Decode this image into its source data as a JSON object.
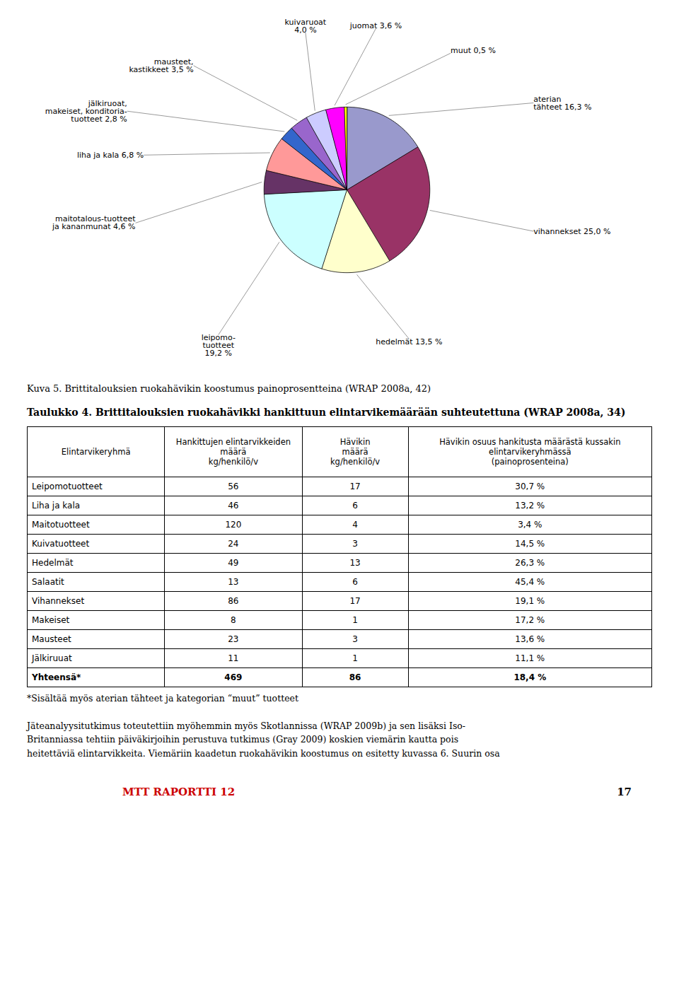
{
  "chart_data": {
    "type": "pie",
    "title": "Kuva 5. Brittitalouksien ruokahävikin koostumus painoprosentteina (WRAP 2008a, 42)",
    "categories": [
      "aterian\ntähteet 16,3 %",
      "vihannekset 25,0 %",
      "hedelmät 13,5 %",
      "leipomo-\ntuotteet\n19,2 %",
      "maitotalous-tuotteet\nja kananmunat 4,6 %",
      "liha ja kala 6,8 %",
      "jälkiruoat,\nmakeiset, konditoria-\ntuotteet 2,8 %",
      "mausteet,\nkastikkeet 3,5 %",
      "kuivaruoat\n4,0 %",
      "juomat 3,6 %",
      "muut 0,5 %"
    ],
    "values": [
      16.3,
      25.0,
      13.5,
      19.2,
      4.6,
      6.8,
      2.8,
      3.5,
      4.0,
      3.6,
      0.5
    ],
    "colors": [
      "#9999CC",
      "#993366",
      "#FFFFCC",
      "#CCFFFF",
      "#663366",
      "#FF9999",
      "#3366CC",
      "#9966CC",
      "#CCCCFF",
      "#FF00FF",
      "#FFFF00"
    ]
  },
  "table": {
    "title": "Taulukko 4. Brittitalouksien ruokahävikki hankittuun elintarvikemäärään suhteutettuna (WRAP 2008a, 34)",
    "header": [
      "Elintarvikeryhmä",
      "Hankittujen elintarvikkeiden määrä\nkg/henkilö/v",
      "Hävikin\nmäärä\nkg/henkilö/v",
      "Hävikin osuus hankitusta määrästä kussakin\nelintarvikeryhmässä\n(painoprosenteina)"
    ],
    "rows": [
      [
        "Leipomotuotteet",
        "56",
        "17",
        "30,7 %"
      ],
      [
        "Liha ja kala",
        "46",
        "6",
        "13,2 %"
      ],
      [
        "Maitotuotteet",
        "120",
        "4",
        "3,4 %"
      ],
      [
        "Kuivatuotteet",
        "24",
        "3",
        "14,5 %"
      ],
      [
        "Hedelmät",
        "49",
        "13",
        "26,3 %"
      ],
      [
        "Salaatit",
        "13",
        "6",
        "45,4 %"
      ],
      [
        "Vihannekset",
        "86",
        "17",
        "19,1 %"
      ],
      [
        "Makeiset",
        "8",
        "1",
        "17,2 %"
      ],
      [
        "Mausteet",
        "23",
        "3",
        "13,6 %"
      ],
      [
        "Jälkiruuat",
        "11",
        "1",
        "11,1 %"
      ],
      [
        "Yhteensä*",
        "469",
        "86",
        "18,4 %"
      ]
    ],
    "footnote": "*Sisältää myös aterian tähteet ja kategorian “muut” tuotteet"
  },
  "body_text": [
    "Jäteanalyysitutkimus toteutettiin myöhemmin myös Skotlannissa (WRAP 2009b) ja sen lisäksi Iso-",
    "Britanniassa tehtiin päiväkirjoihin perustuva tutkimus (Gray 2009) koskien viemärin kautta pois",
    "heitettäviä elintarvikkeita. Viemäriin kaadetun ruokahävikin koostumus on esitetty kuvassa 6. Suurin osa"
  ],
  "footer": {
    "left": "MTT RAPORTTI 12",
    "right": "17",
    "left_color": "#CC0000"
  }
}
